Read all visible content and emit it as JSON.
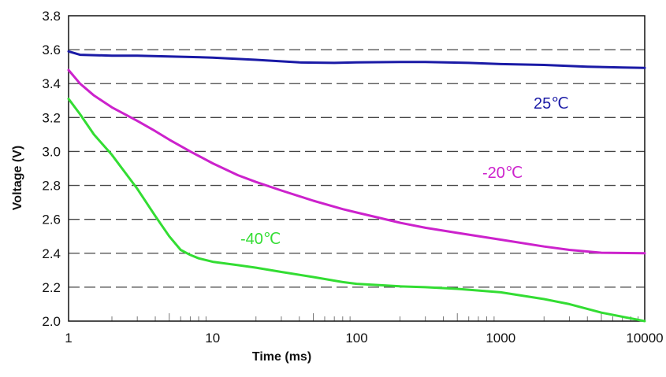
{
  "chart_data": {
    "type": "line",
    "title": "",
    "xlabel": "Time (ms)",
    "ylabel": "Voltage (V)",
    "x_scale": "log",
    "xlim": [
      1,
      10000
    ],
    "ylim": [
      2.0,
      3.8
    ],
    "x_ticks": [
      1,
      10,
      100,
      1000,
      10000
    ],
    "x_tick_labels": [
      "1",
      "10",
      "100",
      "1000",
      "10000"
    ],
    "y_ticks": [
      2.0,
      2.2,
      2.4,
      2.6,
      2.8,
      3.0,
      3.2,
      3.4,
      3.6,
      3.8
    ],
    "y_tick_labels": [
      "2.0",
      "2.2",
      "2.4",
      "2.6",
      "2.8",
      "3.0",
      "3.2",
      "3.4",
      "3.6",
      "3.8"
    ],
    "grid": "horizontal dashed",
    "legend": "none",
    "series": [
      {
        "label": "25℃",
        "color": "#1a1aa6",
        "points": [
          [
            1,
            3.59
          ],
          [
            1.2,
            3.57
          ],
          [
            2,
            3.565
          ],
          [
            3,
            3.565
          ],
          [
            5,
            3.56
          ],
          [
            10,
            3.553
          ],
          [
            20,
            3.54
          ],
          [
            40,
            3.525
          ],
          [
            70,
            3.522
          ],
          [
            100,
            3.525
          ],
          [
            200,
            3.527
          ],
          [
            300,
            3.527
          ],
          [
            600,
            3.522
          ],
          [
            1000,
            3.515
          ],
          [
            2000,
            3.51
          ],
          [
            4000,
            3.5
          ],
          [
            7000,
            3.495
          ],
          [
            10000,
            3.493
          ]
        ]
      },
      {
        "label": "-20℃",
        "color": "#cc22cc",
        "points": [
          [
            1,
            3.48
          ],
          [
            1.2,
            3.4
          ],
          [
            1.5,
            3.33
          ],
          [
            2,
            3.26
          ],
          [
            3,
            3.18
          ],
          [
            4,
            3.12
          ],
          [
            5,
            3.07
          ],
          [
            7,
            3.0
          ],
          [
            10,
            2.93
          ],
          [
            15,
            2.86
          ],
          [
            20,
            2.82
          ],
          [
            30,
            2.77
          ],
          [
            50,
            2.71
          ],
          [
            80,
            2.66
          ],
          [
            100,
            2.64
          ],
          [
            200,
            2.58
          ],
          [
            300,
            2.55
          ],
          [
            500,
            2.52
          ],
          [
            1000,
            2.48
          ],
          [
            2000,
            2.44
          ],
          [
            3000,
            2.42
          ],
          [
            5000,
            2.403
          ],
          [
            10000,
            2.4
          ]
        ]
      },
      {
        "label": "-40℃",
        "color": "#33dd33",
        "points": [
          [
            1,
            3.31
          ],
          [
            1.2,
            3.22
          ],
          [
            1.5,
            3.1
          ],
          [
            2,
            2.98
          ],
          [
            3,
            2.78
          ],
          [
            4,
            2.62
          ],
          [
            5,
            2.5
          ],
          [
            6,
            2.42
          ],
          [
            7,
            2.39
          ],
          [
            8,
            2.37
          ],
          [
            10,
            2.35
          ],
          [
            15,
            2.33
          ],
          [
            20,
            2.315
          ],
          [
            30,
            2.29
          ],
          [
            50,
            2.26
          ],
          [
            80,
            2.23
          ],
          [
            100,
            2.22
          ],
          [
            200,
            2.205
          ],
          [
            300,
            2.2
          ],
          [
            500,
            2.19
          ],
          [
            1000,
            2.17
          ],
          [
            2000,
            2.13
          ],
          [
            3000,
            2.1
          ],
          [
            5000,
            2.05
          ],
          [
            10000,
            2.0
          ]
        ]
      }
    ]
  }
}
